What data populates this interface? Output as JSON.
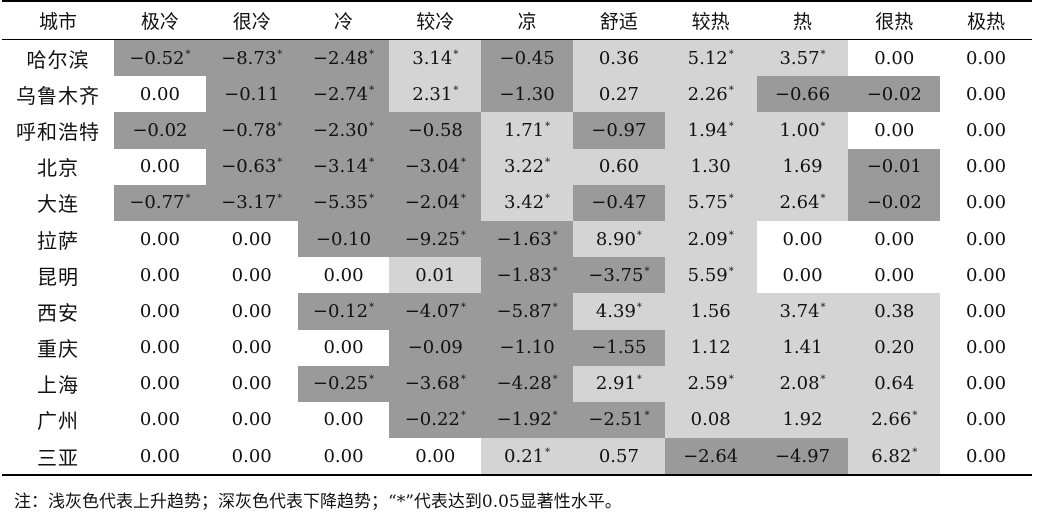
{
  "table": {
    "headers": [
      "城市",
      "极冷",
      "很冷",
      "冷",
      "较冷",
      "凉",
      "舒适",
      "较热",
      "热",
      "很热",
      "极热"
    ],
    "rows": [
      {
        "city": "哈尔滨",
        "cells": [
          {
            "v": "−0.52",
            "sig": "*",
            "shade": "dark"
          },
          {
            "v": "−8.73",
            "sig": "*",
            "shade": "dark"
          },
          {
            "v": "−2.48",
            "sig": "*",
            "shade": "dark"
          },
          {
            "v": "3.14",
            "sig": "*",
            "shade": "light"
          },
          {
            "v": "−0.45",
            "sig": "",
            "shade": "dark"
          },
          {
            "v": "0.36",
            "sig": "",
            "shade": "light"
          },
          {
            "v": "5.12",
            "sig": "*",
            "shade": "light"
          },
          {
            "v": "3.57",
            "sig": "*",
            "shade": "light"
          },
          {
            "v": "0.00",
            "sig": "",
            "shade": "none"
          },
          {
            "v": "0.00",
            "sig": "",
            "shade": "none"
          }
        ]
      },
      {
        "city": "乌鲁木齐",
        "cells": [
          {
            "v": "0.00",
            "sig": "",
            "shade": "none"
          },
          {
            "v": "−0.11",
            "sig": "",
            "shade": "dark"
          },
          {
            "v": "−2.74",
            "sig": "*",
            "shade": "dark"
          },
          {
            "v": "2.31",
            "sig": "*",
            "shade": "light"
          },
          {
            "v": "−1.30",
            "sig": "",
            "shade": "dark"
          },
          {
            "v": "0.27",
            "sig": "",
            "shade": "light"
          },
          {
            "v": "2.26",
            "sig": "*",
            "shade": "light"
          },
          {
            "v": "−0.66",
            "sig": "",
            "shade": "dark"
          },
          {
            "v": "−0.02",
            "sig": "",
            "shade": "dark"
          },
          {
            "v": "0.00",
            "sig": "",
            "shade": "none"
          }
        ]
      },
      {
        "city": "呼和浩特",
        "cells": [
          {
            "v": "−0.02",
            "sig": "",
            "shade": "dark"
          },
          {
            "v": "−0.78",
            "sig": "*",
            "shade": "dark"
          },
          {
            "v": "−2.30",
            "sig": "*",
            "shade": "dark"
          },
          {
            "v": "−0.58",
            "sig": "",
            "shade": "dark"
          },
          {
            "v": "1.71",
            "sig": "*",
            "shade": "light"
          },
          {
            "v": "−0.97",
            "sig": "",
            "shade": "dark"
          },
          {
            "v": "1.94",
            "sig": "*",
            "shade": "light"
          },
          {
            "v": "1.00",
            "sig": "*",
            "shade": "light"
          },
          {
            "v": "0.00",
            "sig": "",
            "shade": "none"
          },
          {
            "v": "0.00",
            "sig": "",
            "shade": "none"
          }
        ]
      },
      {
        "city": "北京",
        "cells": [
          {
            "v": "0.00",
            "sig": "",
            "shade": "none"
          },
          {
            "v": "−0.63",
            "sig": "*",
            "shade": "dark"
          },
          {
            "v": "−3.14",
            "sig": "*",
            "shade": "dark"
          },
          {
            "v": "−3.04",
            "sig": "*",
            "shade": "dark"
          },
          {
            "v": "3.22",
            "sig": "*",
            "shade": "light"
          },
          {
            "v": "0.60",
            "sig": "",
            "shade": "light"
          },
          {
            "v": "1.30",
            "sig": "",
            "shade": "light"
          },
          {
            "v": "1.69",
            "sig": "",
            "shade": "light"
          },
          {
            "v": "−0.01",
            "sig": "",
            "shade": "dark"
          },
          {
            "v": "0.00",
            "sig": "",
            "shade": "none"
          }
        ]
      },
      {
        "city": "大连",
        "cells": [
          {
            "v": "−0.77",
            "sig": "*",
            "shade": "dark"
          },
          {
            "v": "−3.17",
            "sig": "*",
            "shade": "dark"
          },
          {
            "v": "−5.35",
            "sig": "*",
            "shade": "dark"
          },
          {
            "v": "−2.04",
            "sig": "*",
            "shade": "dark"
          },
          {
            "v": "3.42",
            "sig": "*",
            "shade": "light"
          },
          {
            "v": "−0.47",
            "sig": "",
            "shade": "dark"
          },
          {
            "v": "5.75",
            "sig": "*",
            "shade": "light"
          },
          {
            "v": "2.64",
            "sig": "*",
            "shade": "light"
          },
          {
            "v": "−0.02",
            "sig": "",
            "shade": "dark"
          },
          {
            "v": "0.00",
            "sig": "",
            "shade": "none"
          }
        ]
      },
      {
        "city": "拉萨",
        "cells": [
          {
            "v": "0.00",
            "sig": "",
            "shade": "none"
          },
          {
            "v": "0.00",
            "sig": "",
            "shade": "none"
          },
          {
            "v": "−0.10",
            "sig": "",
            "shade": "dark"
          },
          {
            "v": "−9.25",
            "sig": "*",
            "shade": "dark"
          },
          {
            "v": "−1.63",
            "sig": "*",
            "shade": "dark"
          },
          {
            "v": "8.90",
            "sig": "*",
            "shade": "light"
          },
          {
            "v": "2.09",
            "sig": "*",
            "shade": "light"
          },
          {
            "v": "0.00",
            "sig": "",
            "shade": "none"
          },
          {
            "v": "0.00",
            "sig": "",
            "shade": "none"
          },
          {
            "v": "0.00",
            "sig": "",
            "shade": "none"
          }
        ]
      },
      {
        "city": "昆明",
        "cells": [
          {
            "v": "0.00",
            "sig": "",
            "shade": "none"
          },
          {
            "v": "0.00",
            "sig": "",
            "shade": "none"
          },
          {
            "v": "0.00",
            "sig": "",
            "shade": "none"
          },
          {
            "v": "0.01",
            "sig": "",
            "shade": "light"
          },
          {
            "v": "−1.83",
            "sig": "*",
            "shade": "dark"
          },
          {
            "v": "−3.75",
            "sig": "*",
            "shade": "dark"
          },
          {
            "v": "5.59",
            "sig": "*",
            "shade": "light"
          },
          {
            "v": "0.00",
            "sig": "",
            "shade": "none"
          },
          {
            "v": "0.00",
            "sig": "",
            "shade": "none"
          },
          {
            "v": "0.00",
            "sig": "",
            "shade": "none"
          }
        ]
      },
      {
        "city": "西安",
        "cells": [
          {
            "v": "0.00",
            "sig": "",
            "shade": "none"
          },
          {
            "v": "0.00",
            "sig": "",
            "shade": "none"
          },
          {
            "v": "−0.12",
            "sig": "*",
            "shade": "dark"
          },
          {
            "v": "−4.07",
            "sig": "*",
            "shade": "dark"
          },
          {
            "v": "−5.87",
            "sig": "*",
            "shade": "dark"
          },
          {
            "v": "4.39",
            "sig": "*",
            "shade": "light"
          },
          {
            "v": "1.56",
            "sig": "",
            "shade": "light"
          },
          {
            "v": "3.74",
            "sig": "*",
            "shade": "light"
          },
          {
            "v": "0.38",
            "sig": "",
            "shade": "light"
          },
          {
            "v": "0.00",
            "sig": "",
            "shade": "none"
          }
        ]
      },
      {
        "city": "重庆",
        "cells": [
          {
            "v": "0.00",
            "sig": "",
            "shade": "none"
          },
          {
            "v": "0.00",
            "sig": "",
            "shade": "none"
          },
          {
            "v": "0.00",
            "sig": "",
            "shade": "none"
          },
          {
            "v": "−0.09",
            "sig": "",
            "shade": "dark"
          },
          {
            "v": "−1.10",
            "sig": "",
            "shade": "dark"
          },
          {
            "v": "−1.55",
            "sig": "",
            "shade": "dark"
          },
          {
            "v": "1.12",
            "sig": "",
            "shade": "light"
          },
          {
            "v": "1.41",
            "sig": "",
            "shade": "light"
          },
          {
            "v": "0.20",
            "sig": "",
            "shade": "light"
          },
          {
            "v": "0.00",
            "sig": "",
            "shade": "none"
          }
        ]
      },
      {
        "city": "上海",
        "cells": [
          {
            "v": "0.00",
            "sig": "",
            "shade": "none"
          },
          {
            "v": "0.00",
            "sig": "",
            "shade": "none"
          },
          {
            "v": "−0.25",
            "sig": "*",
            "shade": "dark"
          },
          {
            "v": "−3.68",
            "sig": "*",
            "shade": "dark"
          },
          {
            "v": "−4.28",
            "sig": "*",
            "shade": "dark"
          },
          {
            "v": "2.91",
            "sig": "*",
            "shade": "light"
          },
          {
            "v": "2.59",
            "sig": "*",
            "shade": "light"
          },
          {
            "v": "2.08",
            "sig": "*",
            "shade": "light"
          },
          {
            "v": "0.64",
            "sig": "",
            "shade": "light"
          },
          {
            "v": "0.00",
            "sig": "",
            "shade": "none"
          }
        ]
      },
      {
        "city": "广州",
        "cells": [
          {
            "v": "0.00",
            "sig": "",
            "shade": "none"
          },
          {
            "v": "0.00",
            "sig": "",
            "shade": "none"
          },
          {
            "v": "0.00",
            "sig": "",
            "shade": "none"
          },
          {
            "v": "−0.22",
            "sig": "*",
            "shade": "dark"
          },
          {
            "v": "−1.92",
            "sig": "*",
            "shade": "dark"
          },
          {
            "v": "−2.51",
            "sig": "*",
            "shade": "dark"
          },
          {
            "v": "0.08",
            "sig": "",
            "shade": "light"
          },
          {
            "v": "1.92",
            "sig": "",
            "shade": "light"
          },
          {
            "v": "2.66",
            "sig": "*",
            "shade": "light"
          },
          {
            "v": "0.00",
            "sig": "",
            "shade": "none"
          }
        ]
      },
      {
        "city": "三亚",
        "cells": [
          {
            "v": "0.00",
            "sig": "",
            "shade": "none"
          },
          {
            "v": "0.00",
            "sig": "",
            "shade": "none"
          },
          {
            "v": "0.00",
            "sig": "",
            "shade": "none"
          },
          {
            "v": "0.00",
            "sig": "",
            "shade": "none"
          },
          {
            "v": "0.21",
            "sig": "*",
            "shade": "light"
          },
          {
            "v": "0.57",
            "sig": "",
            "shade": "light"
          },
          {
            "v": "−2.64",
            "sig": "",
            "shade": "dark"
          },
          {
            "v": "−4.97",
            "sig": "",
            "shade": "dark"
          },
          {
            "v": "6.82",
            "sig": "*",
            "shade": "light"
          },
          {
            "v": "0.00",
            "sig": "",
            "shade": "none"
          }
        ]
      }
    ]
  },
  "colors": {
    "light_gray": "#d4d4d4",
    "dark_gray": "#9a9a9a"
  },
  "note": "注：浅灰色代表上升趋势；深灰色代表下降趋势；“*”代表达到0.05显著性水平。"
}
